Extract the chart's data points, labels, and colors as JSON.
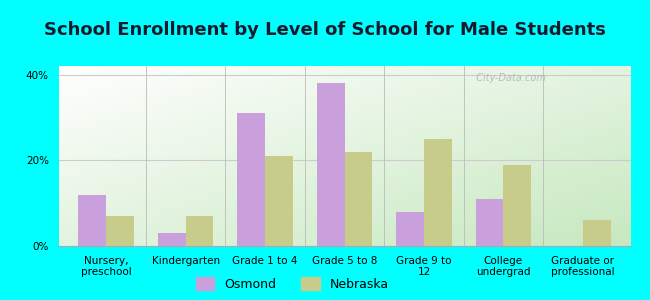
{
  "title": "School Enrollment by Level of School for Male Students",
  "categories": [
    "Nursery,\npreschool",
    "Kindergarten",
    "Grade 1 to 4",
    "Grade 5 to 8",
    "Grade 9 to\n12",
    "College\nundergrad",
    "Graduate or\nprofessional"
  ],
  "osmond": [
    12,
    3,
    31,
    38,
    8,
    11,
    0
  ],
  "nebraska": [
    7,
    7,
    21,
    22,
    25,
    19,
    6
  ],
  "osmond_color": "#c9a0dc",
  "nebraska_color": "#c8cc8a",
  "bar_width": 0.35,
  "ylim": [
    0,
    42
  ],
  "yticks": [
    0,
    20,
    40
  ],
  "ytick_labels": [
    "0%",
    "20%",
    "40%"
  ],
  "background_color": "#00ffff",
  "title_fontsize": 13,
  "axis_label_fontsize": 7.5,
  "legend_fontsize": 9,
  "watermark": "  City-Data.com"
}
